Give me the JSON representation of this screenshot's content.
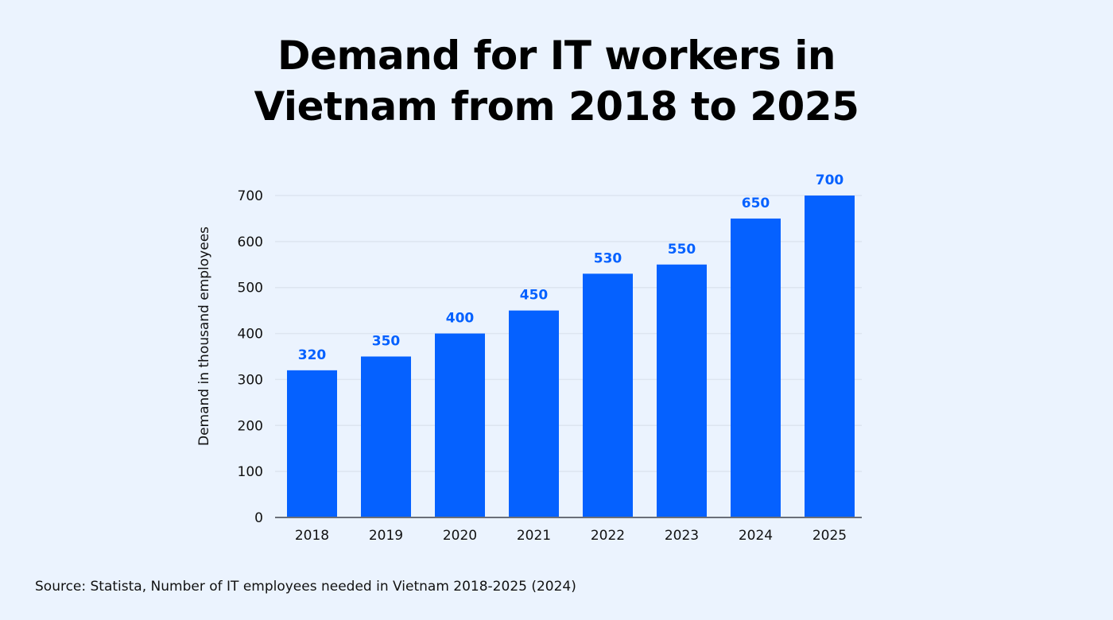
{
  "chart_data": {
    "type": "bar",
    "title_lines": [
      "Demand for IT workers in",
      "Vietnam from 2018 to 2025"
    ],
    "categories": [
      "2018",
      "2019",
      "2020",
      "2021",
      "2022",
      "2023",
      "2024",
      "2025"
    ],
    "values": [
      320,
      350,
      400,
      450,
      530,
      550,
      650,
      700
    ],
    "xlabel": "",
    "ylabel": "Demand in thousand employees",
    "ylim": [
      0,
      700
    ],
    "yticks": [
      0,
      100,
      200,
      300,
      400,
      500,
      600,
      700
    ],
    "grid": true,
    "data_labels": true,
    "colors": {
      "bar": "#0561ff",
      "label": "#0561ff",
      "background": "#ebf3fe",
      "grid": "#dde5f0",
      "axis": "#6b6f78"
    }
  },
  "source": "Source: Statista, Number of IT employees needed in Vietnam 2018-2025 (2024)"
}
